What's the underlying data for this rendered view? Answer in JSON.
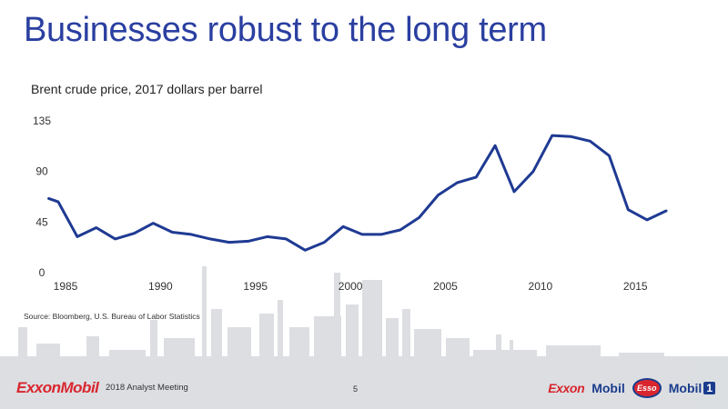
{
  "slide": {
    "title": "Businesses robust to the long term",
    "source": "Source: Bloomberg, U.S. Bureau of Labor Statistics"
  },
  "footer": {
    "logo": "ExxonMobil",
    "event": "2018 Analyst Meeting",
    "page_number": "5",
    "brands": {
      "exxon": "Exxon",
      "mobil": "Mobil",
      "esso": "Esso",
      "mobil1": "Mobil",
      "mobil1_num": "1"
    }
  },
  "colors": {
    "title": "#2a3fa0",
    "line": "#1f3a93",
    "brand_red": "#d9262e",
    "brand_blue": "#1a3c8c",
    "background_art": "#d6d9dd"
  },
  "chart_data": {
    "type": "line",
    "title": "Brent crude price, 2017 dollars per barrel",
    "xlabel": "",
    "ylabel": "",
    "xlim": [
      1985,
      2017
    ],
    "ylim": [
      0,
      135
    ],
    "x_ticks": [
      1985,
      1990,
      1995,
      2000,
      2005,
      2010,
      2015
    ],
    "y_ticks": [
      0,
      45,
      90,
      135
    ],
    "grid": false,
    "legend": "none",
    "x": [
      1984.5,
      1985,
      1986,
      1987,
      1988,
      1989,
      1990,
      1991,
      1992,
      1993,
      1994,
      1995,
      1996,
      1997,
      1998,
      1999,
      2000,
      2001,
      2002,
      2003,
      2004,
      2005,
      2006,
      2007,
      2008,
      2009,
      2010,
      2011,
      2012,
      2013,
      2014,
      2015,
      2016,
      2017
    ],
    "series": [
      {
        "color": "#1f3a93",
        "values": [
          66,
          63,
          32,
          40,
          30,
          35,
          44,
          36,
          34,
          30,
          27,
          28,
          32,
          30,
          20,
          27,
          41,
          34,
          34,
          38,
          49,
          69,
          80,
          85,
          113,
          72,
          90,
          122,
          121,
          117,
          104,
          56,
          47,
          55
        ]
      }
    ]
  }
}
